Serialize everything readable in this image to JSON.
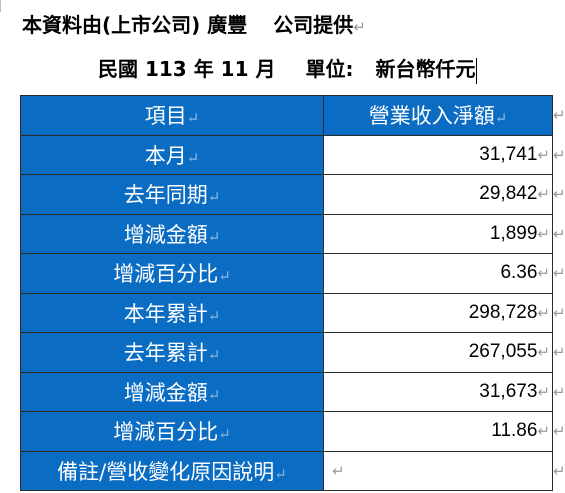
{
  "title_line": {
    "text": "本資料由(上市公司)  廣豐",
    "suffix": "公司提供"
  },
  "period_line": {
    "prefix": "民國",
    "year": "113",
    "year_unit": "年",
    "month": "11",
    "month_unit": "月",
    "unit_label": "單位:",
    "unit_value": "新台幣仟元"
  },
  "paragraph_mark": "↵",
  "table": {
    "header": {
      "item_label": "項目",
      "value_label": "營業收入淨額"
    },
    "rows": [
      {
        "label": "本月",
        "value": "31,741"
      },
      {
        "label": "去年同期",
        "value": "29,842"
      },
      {
        "label": "增減金額",
        "value": "1,899"
      },
      {
        "label": "增減百分比",
        "value": "6.36"
      },
      {
        "label": "本年累計",
        "value": "298,728"
      },
      {
        "label": "去年累計",
        "value": "267,055"
      },
      {
        "label": "增減金額",
        "value": "31,673"
      },
      {
        "label": "增減百分比",
        "value": "11.86"
      },
      {
        "label": "備註/營收變化原因說明",
        "value": ""
      }
    ]
  },
  "colors": {
    "label_background": "#0a6cc2",
    "label_text": "#ffffff",
    "border": "#2b2b2b"
  }
}
